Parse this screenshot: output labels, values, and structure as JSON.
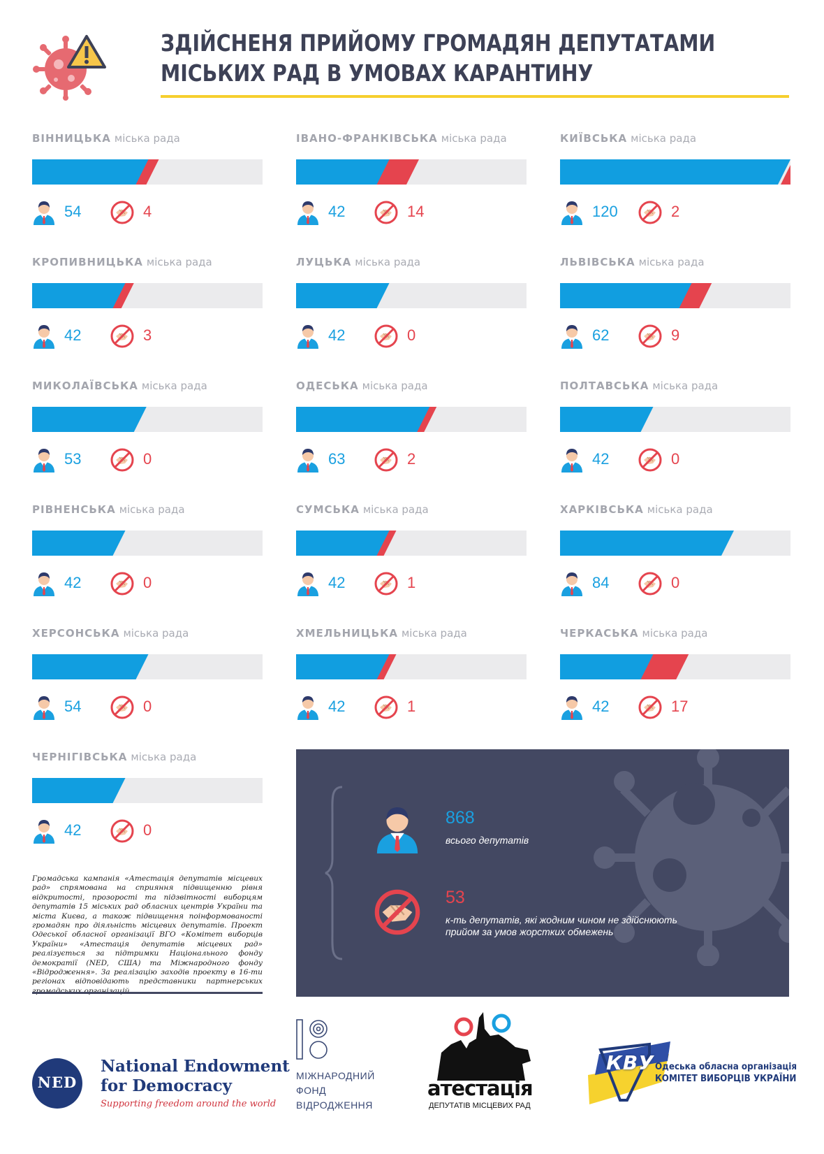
{
  "header": {
    "title_line1": "ЗДІЙСНЕНЯ ПРИЙОМУ ГРОМАДЯН ДЕПУТАТАМИ",
    "title_line2": "МІСЬКИХ РАД В УМОВАХ КАРАНТИНУ"
  },
  "colors": {
    "deputies": "#119ee0",
    "no_reception": "#e5444e",
    "bar_background": "#ebebed",
    "dark_panel": "#434862",
    "accent_line": "#f6cf2e"
  },
  "suffix": "міська рада",
  "chart_data": {
    "type": "bar",
    "orientation": "horizontal",
    "stacked": true,
    "legend": "icons",
    "series": [
      {
        "name": "",
        "color": "#119ee0",
        "icon": "deputy-icon"
      },
      {
        "name": "",
        "color": "#e5444e",
        "icon": "no-handshake-icon"
      }
    ],
    "xlim": [
      0,
      120
    ],
    "cities": [
      {
        "name": "ВІННИЦЬКА",
        "deputies": 54,
        "no_reception": 4
      },
      {
        "name": "ІВАНО-ФРАНКІВСЬКА",
        "deputies": 42,
        "no_reception": 14
      },
      {
        "name": "КИЇВСЬКА",
        "deputies": 120,
        "no_reception": 2
      },
      {
        "name": "КРОПИВНИЦЬКА",
        "deputies": 42,
        "no_reception": 3
      },
      {
        "name": "ЛУЦЬКА",
        "deputies": 42,
        "no_reception": 0
      },
      {
        "name": "ЛЬВІВСЬКА",
        "deputies": 62,
        "no_reception": 9
      },
      {
        "name": "МИКОЛАЇВСЬКА",
        "deputies": 53,
        "no_reception": 0
      },
      {
        "name": "ОДЕСЬКА",
        "deputies": 63,
        "no_reception": 2
      },
      {
        "name": "ПОЛТАВСЬКА",
        "deputies": 42,
        "no_reception": 0
      },
      {
        "name": "РІВНЕНСЬКА",
        "deputies": 42,
        "no_reception": 0
      },
      {
        "name": "СУМСЬКА",
        "deputies": 42,
        "no_reception": 1
      },
      {
        "name": "ХАРКІВСЬКА",
        "deputies": 84,
        "no_reception": 0
      },
      {
        "name": "ХЕРСОНСЬКА",
        "deputies": 54,
        "no_reception": 0
      },
      {
        "name": "ХМЕЛЬНИЦЬКА",
        "deputies": 42,
        "no_reception": 1
      },
      {
        "name": "ЧЕРКАСЬКА",
        "deputies": 42,
        "no_reception": 17
      },
      {
        "name": "ЧЕРНІГІВСЬКА",
        "deputies": 42,
        "no_reception": 0
      }
    ]
  },
  "summary": {
    "total_value": "868",
    "total_label": "всього депутатів",
    "none_value": "53",
    "none_label": "к-ть депутатів, які жодним чином не здійснюють прийом за умов жорстких обмежень"
  },
  "description": "Громадська кампанія «Атестація депутатів місцевих рад» спрямована на сприяння підвищенню рівня відкритості, прозорості та підзвітності виборцям депутатів 15 міських рад обласних центрів України та міста Києва, а також підвищення поінформованості громадян про діяльність місцевих депутатів. Проект Одеської обласної організації ВГО «Комітет виборців України» «Атестація депутатів місцевих рад» реалізується за підтримки Національного фонду демократії (NED, США) та Міжнародного фонду «Відродження». За реалізацію заходів проекту в 16-ти регіонах відповідають представники партнерських громадських організацій.",
  "logos": {
    "ned": {
      "mark": "NED",
      "line1": "National Endowment",
      "line2": "for Democracy",
      "tagline": "Supporting freedom around the world"
    },
    "mfv": {
      "line1": "МІЖНАРОДНИЙ",
      "line2": "ФОНД",
      "line3": "ВІДРОДЖЕННЯ"
    },
    "atestatsiya": {
      "name": "атестація",
      "subtitle": "ДЕПУТАТІВ МІСЦЕВИХ РАД"
    },
    "kvu": {
      "mark": "КВУ",
      "line1": "Одеська обласна організація",
      "line2": "КОМІТЕТ ВИБОРЦІВ УКРАЇНИ"
    }
  }
}
